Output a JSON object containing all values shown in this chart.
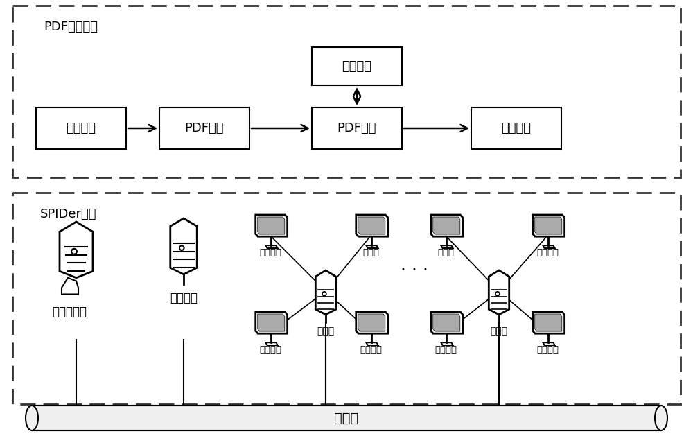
{
  "bg_color": "#ffffff",
  "top_label": "PDF显示系统",
  "bottom_label": "SPIDer平台",
  "box1": "信息读取",
  "box2": "PDF解析",
  "box3": "PDF显示",
  "box4": "信息保存",
  "box5": "控制操作",
  "net_label": "千兆网",
  "file_server_label": "文件服务器",
  "master_node_label": "主控节点",
  "child_node_label": "子节点",
  "display_unit": "显示单元",
  "display_unit2": "显示单",
  "show_unit": "示单元"
}
